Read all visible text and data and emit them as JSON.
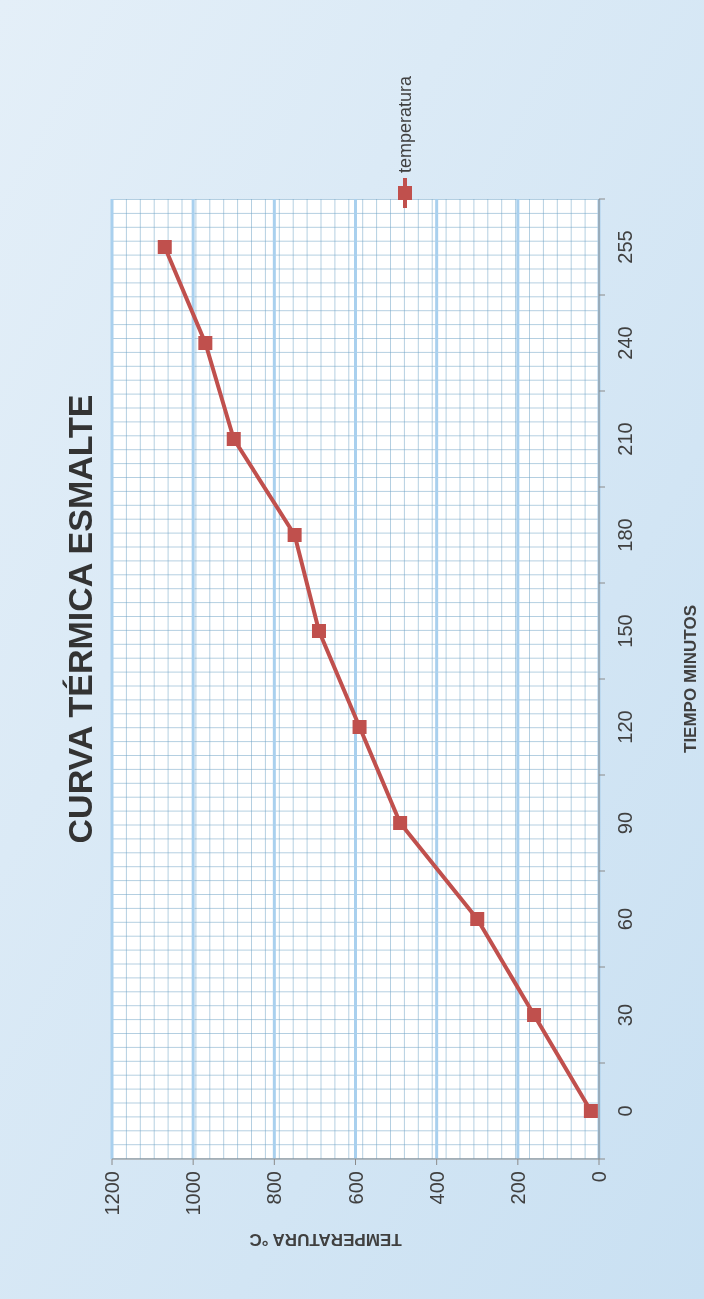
{
  "chart_data": {
    "type": "line",
    "orientation": "horizontal",
    "title": "CURVA TÉRMICA ESMALTE",
    "xlabel": "TEMPERATURA °C",
    "ylabel": "TIEMPO MINUTOS",
    "categories": [
      "255",
      "240",
      "210",
      "180",
      "150",
      "120",
      "90",
      "60",
      "30",
      "0"
    ],
    "series": [
      {
        "name": "temperatura",
        "color": "#c0504d",
        "values": [
          1070,
          970,
          900,
          750,
          690,
          590,
          490,
          300,
          160,
          20
        ]
      }
    ],
    "xlim": [
      1200,
      0
    ],
    "xticks": [
      1200,
      1000,
      800,
      600,
      400,
      200,
      0
    ],
    "grid": "x",
    "legend": "top",
    "marker": "square",
    "line_style": "solid"
  }
}
